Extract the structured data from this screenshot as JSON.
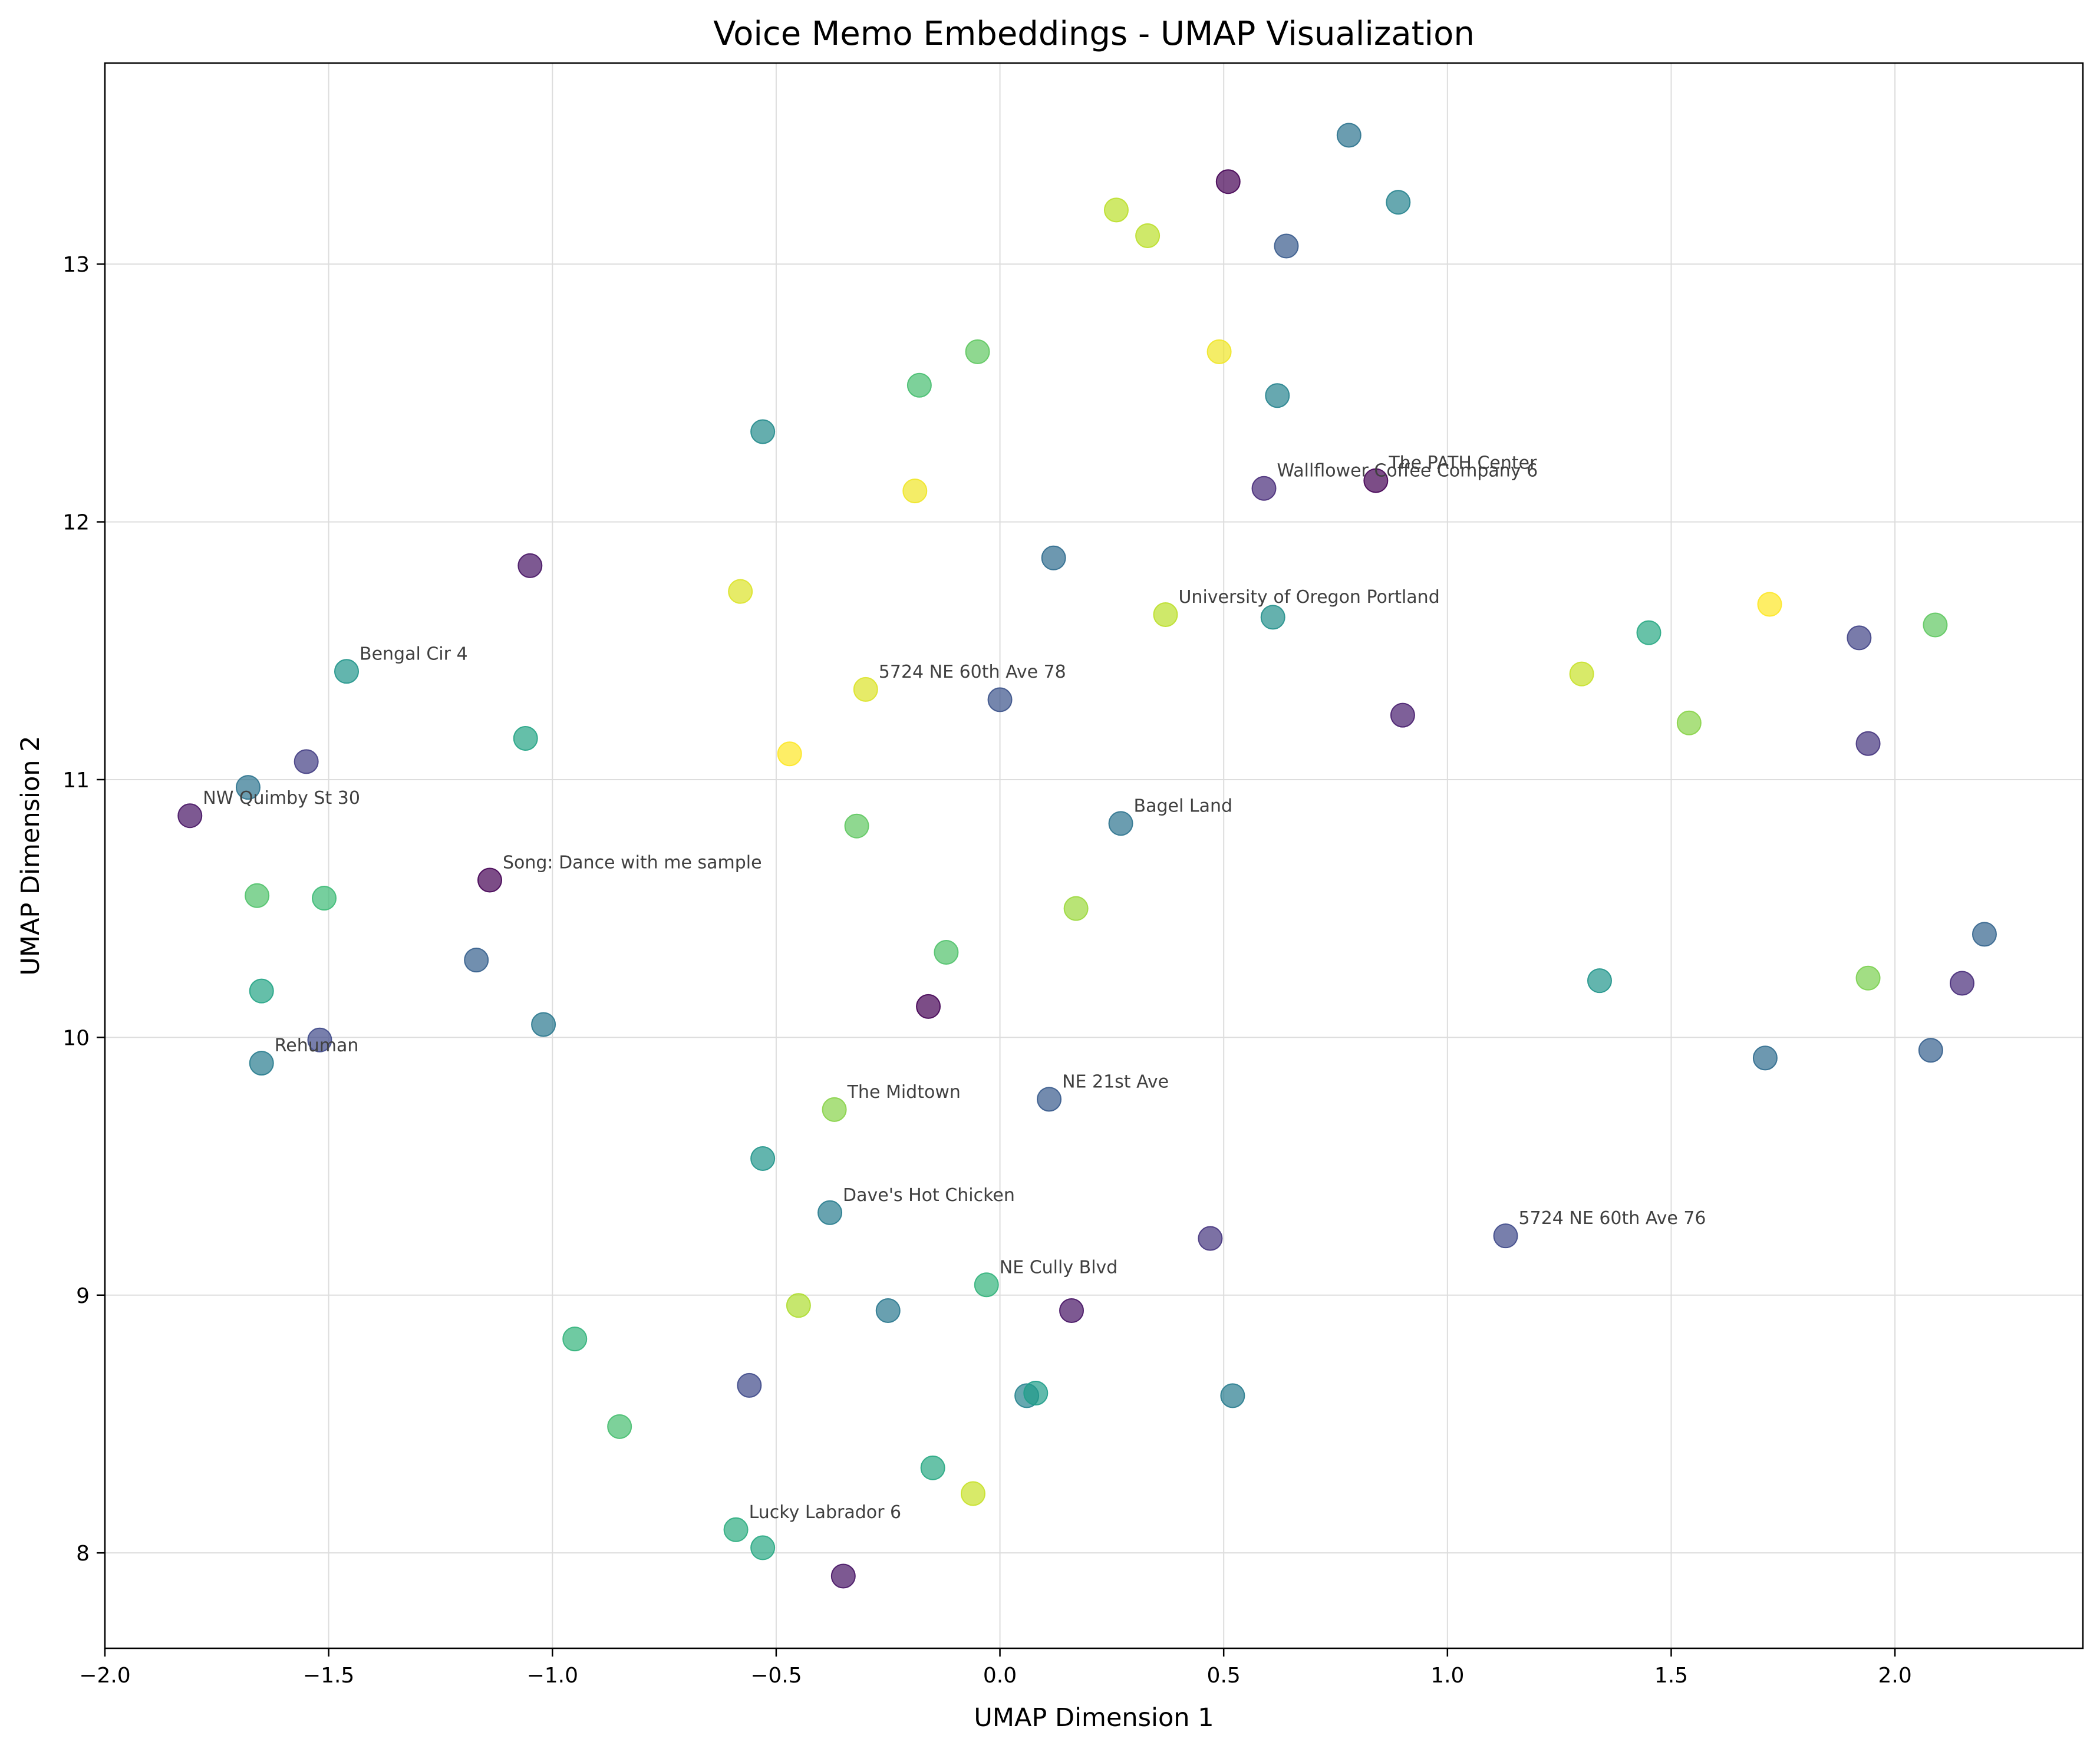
{
  "chart_data": {
    "type": "scatter",
    "title": "Voice Memo Embeddings - UMAP Visualization",
    "xlabel": "UMAP Dimension 1",
    "ylabel": "UMAP Dimension 2",
    "xlim": [
      -2.0,
      2.42
    ],
    "ylim": [
      7.63,
      13.78
    ],
    "xticks": [
      -2.0,
      -1.5,
      -1.0,
      -0.5,
      0.0,
      0.5,
      1.0,
      1.5,
      2.0
    ],
    "xtick_labels": [
      "−2.0",
      "−1.5",
      "−1.0",
      "−0.5",
      "0.0",
      "0.5",
      "1.0",
      "1.5",
      "2.0"
    ],
    "yticks": [
      8,
      9,
      10,
      11,
      12,
      13
    ],
    "ytick_labels": [
      "8",
      "9",
      "10",
      "11",
      "12",
      "13"
    ],
    "grid": true,
    "legend": "none",
    "colormap": "viridis",
    "point_alpha": 0.7,
    "points": [
      {
        "x": 0.78,
        "y": 13.5,
        "c": 0.38
      },
      {
        "x": 0.51,
        "y": 13.32,
        "c": 0.0
      },
      {
        "x": 0.89,
        "y": 13.24,
        "c": 0.45
      },
      {
        "x": 0.26,
        "y": 13.21,
        "c": 0.9
      },
      {
        "x": 0.33,
        "y": 13.11,
        "c": 0.9
      },
      {
        "x": 0.64,
        "y": 13.07,
        "c": 0.28
      },
      {
        "x": -0.05,
        "y": 12.66,
        "c": 0.75
      },
      {
        "x": 0.49,
        "y": 12.66,
        "c": 0.98
      },
      {
        "x": -0.18,
        "y": 12.53,
        "c": 0.7
      },
      {
        "x": 0.62,
        "y": 12.49,
        "c": 0.45
      },
      {
        "x": -0.53,
        "y": 12.35,
        "c": 0.48
      },
      {
        "x": 0.59,
        "y": 12.13,
        "c": 0.12,
        "label": "Wallflower Coffee Company 6"
      },
      {
        "x": 0.84,
        "y": 12.16,
        "c": 0.0,
        "label": "The PATH Center"
      },
      {
        "x": -0.19,
        "y": 12.12,
        "c": 0.98
      },
      {
        "x": 0.12,
        "y": 11.86,
        "c": 0.35
      },
      {
        "x": -1.05,
        "y": 11.83,
        "c": 0.05
      },
      {
        "x": -0.58,
        "y": 11.73,
        "c": 0.95
      },
      {
        "x": 0.37,
        "y": 11.64,
        "c": 0.9,
        "label": "University of Oregon Portland"
      },
      {
        "x": 0.61,
        "y": 11.63,
        "c": 0.5
      },
      {
        "x": 1.72,
        "y": 11.68,
        "c": 1.0
      },
      {
        "x": 1.45,
        "y": 11.57,
        "c": 0.6
      },
      {
        "x": 1.92,
        "y": 11.55,
        "c": 0.2
      },
      {
        "x": 2.09,
        "y": 11.6,
        "c": 0.75
      },
      {
        "x": -1.46,
        "y": 11.42,
        "c": 0.52,
        "label": "Bengal Cir 4"
      },
      {
        "x": 1.3,
        "y": 11.41,
        "c": 0.92
      },
      {
        "x": -0.3,
        "y": 11.35,
        "c": 0.95,
        "label": "5724 NE 60th Ave 78"
      },
      {
        "x": 0.0,
        "y": 11.31,
        "c": 0.25
      },
      {
        "x": 0.9,
        "y": 11.25,
        "c": 0.08
      },
      {
        "x": 1.54,
        "y": 11.22,
        "c": 0.82
      },
      {
        "x": -1.06,
        "y": 11.16,
        "c": 0.58
      },
      {
        "x": 1.94,
        "y": 11.14,
        "c": 0.15
      },
      {
        "x": -0.47,
        "y": 11.1,
        "c": 1.0
      },
      {
        "x": -1.55,
        "y": 11.07,
        "c": 0.18
      },
      {
        "x": -1.68,
        "y": 10.97,
        "c": 0.38
      },
      {
        "x": -1.81,
        "y": 10.86,
        "c": 0.05,
        "label": "NW Quimby St 30"
      },
      {
        "x": 0.27,
        "y": 10.83,
        "c": 0.38,
        "label": "Bagel Land"
      },
      {
        "x": -0.32,
        "y": 10.82,
        "c": 0.75
      },
      {
        "x": -1.14,
        "y": 10.61,
        "c": 0.0,
        "label": "Song: Dance with me sample"
      },
      {
        "x": -1.66,
        "y": 10.55,
        "c": 0.72
      },
      {
        "x": -1.51,
        "y": 10.54,
        "c": 0.68
      },
      {
        "x": 0.17,
        "y": 10.5,
        "c": 0.85
      },
      {
        "x": 2.2,
        "y": 10.4,
        "c": 0.32
      },
      {
        "x": -0.12,
        "y": 10.33,
        "c": 0.72
      },
      {
        "x": -1.17,
        "y": 10.3,
        "c": 0.3
      },
      {
        "x": 1.34,
        "y": 10.22,
        "c": 0.52
      },
      {
        "x": 1.94,
        "y": 10.23,
        "c": 0.8
      },
      {
        "x": 2.15,
        "y": 10.21,
        "c": 0.12
      },
      {
        "x": -1.65,
        "y": 10.18,
        "c": 0.58
      },
      {
        "x": -0.16,
        "y": 10.12,
        "c": 0.0
      },
      {
        "x": -1.02,
        "y": 10.05,
        "c": 0.4
      },
      {
        "x": -1.52,
        "y": 9.99,
        "c": 0.22
      },
      {
        "x": 2.08,
        "y": 9.95,
        "c": 0.3
      },
      {
        "x": -1.65,
        "y": 9.9,
        "c": 0.42,
        "label": "Rehuman"
      },
      {
        "x": 1.71,
        "y": 9.92,
        "c": 0.35
      },
      {
        "x": 0.11,
        "y": 9.76,
        "c": 0.28,
        "label": "NE 21st Ave"
      },
      {
        "x": -0.37,
        "y": 9.72,
        "c": 0.82,
        "label": "The Midtown"
      },
      {
        "x": -0.53,
        "y": 9.53,
        "c": 0.52
      },
      {
        "x": -0.38,
        "y": 9.32,
        "c": 0.42,
        "label": "Dave's Hot Chicken"
      },
      {
        "x": 1.13,
        "y": 9.23,
        "c": 0.22,
        "label": "5724 NE 60th Ave 76"
      },
      {
        "x": 0.47,
        "y": 9.22,
        "c": 0.15
      },
      {
        "x": -0.03,
        "y": 9.04,
        "c": 0.65,
        "label": "NE Cully Blvd"
      },
      {
        "x": -0.45,
        "y": 8.96,
        "c": 0.88
      },
      {
        "x": -0.25,
        "y": 8.94,
        "c": 0.4
      },
      {
        "x": 0.16,
        "y": 8.94,
        "c": 0.05
      },
      {
        "x": -0.95,
        "y": 8.83,
        "c": 0.65
      },
      {
        "x": -0.56,
        "y": 8.65,
        "c": 0.22
      },
      {
        "x": 0.06,
        "y": 8.61,
        "c": 0.45
      },
      {
        "x": 0.08,
        "y": 8.62,
        "c": 0.55
      },
      {
        "x": 0.52,
        "y": 8.61,
        "c": 0.42
      },
      {
        "x": -0.85,
        "y": 8.49,
        "c": 0.7
      },
      {
        "x": -0.15,
        "y": 8.33,
        "c": 0.6
      },
      {
        "x": -0.06,
        "y": 8.23,
        "c": 0.92
      },
      {
        "x": -0.59,
        "y": 8.09,
        "c": 0.62,
        "label": "Lucky Labrador 6"
      },
      {
        "x": -0.53,
        "y": 8.02,
        "c": 0.6
      },
      {
        "x": -0.35,
        "y": 7.91,
        "c": 0.05
      }
    ]
  }
}
